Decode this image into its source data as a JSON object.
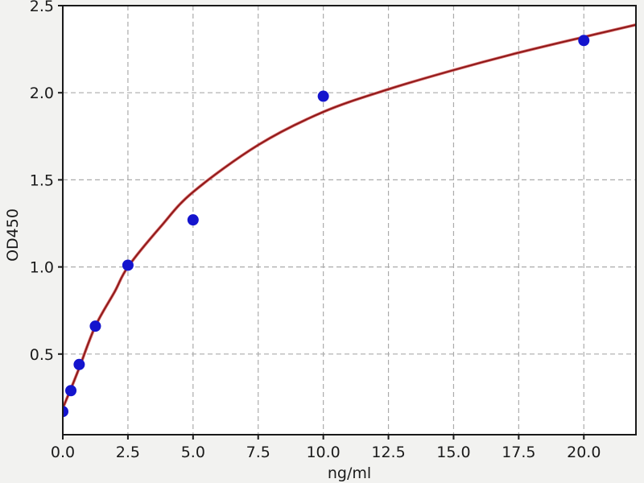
{
  "figure": {
    "background_color": "#f2f2f0",
    "plot_background_color": "#ffffff",
    "grid_color": "#ababab",
    "spine_color": "#1a1a1a",
    "tick_label_color": "#1a1a1a"
  },
  "chart_data": {
    "type": "scatter",
    "title": "",
    "xlabel": "ng/ml",
    "ylabel": "OD450",
    "xlim": [
      0,
      22
    ],
    "ylim": [
      0.037,
      2.5
    ],
    "grid": true,
    "x_ticks": [
      0,
      2.5,
      5,
      7.5,
      10,
      12.5,
      15,
      17.5,
      20
    ],
    "x_tick_labels": [
      "0.0",
      "2.5",
      "5.0",
      "7.5",
      "10.0",
      "12.5",
      "15.0",
      "17.5",
      "20.0"
    ],
    "y_ticks": [
      0.5,
      1.0,
      1.5,
      2.0,
      2.5
    ],
    "y_tick_labels": [
      "0.5",
      "1.0",
      "1.5",
      "2.0",
      "2.5"
    ],
    "series": [
      {
        "name": "standard-points",
        "kind": "scatter",
        "color": "#1414cd",
        "marker": "circle",
        "x": [
          0,
          0.31,
          0.63,
          1.25,
          2.5,
          5,
          10,
          20
        ],
        "y": [
          0.17,
          0.29,
          0.44,
          0.66,
          1.01,
          1.27,
          1.98,
          2.3
        ]
      },
      {
        "name": "fit-curve",
        "kind": "line",
        "color": "#b22222",
        "color_core": "#8c1616",
        "color_halo": "#d46a6a",
        "x": [
          0,
          0.31,
          0.63,
          1.25,
          2.0,
          2.5,
          3.75,
          5,
          7.5,
          10,
          12.5,
          15,
          17.5,
          20,
          22
        ],
        "y": [
          0.19,
          0.3,
          0.42,
          0.66,
          0.86,
          1.0,
          1.23,
          1.43,
          1.7,
          1.89,
          2.02,
          2.13,
          2.23,
          2.32,
          2.39
        ]
      }
    ]
  }
}
